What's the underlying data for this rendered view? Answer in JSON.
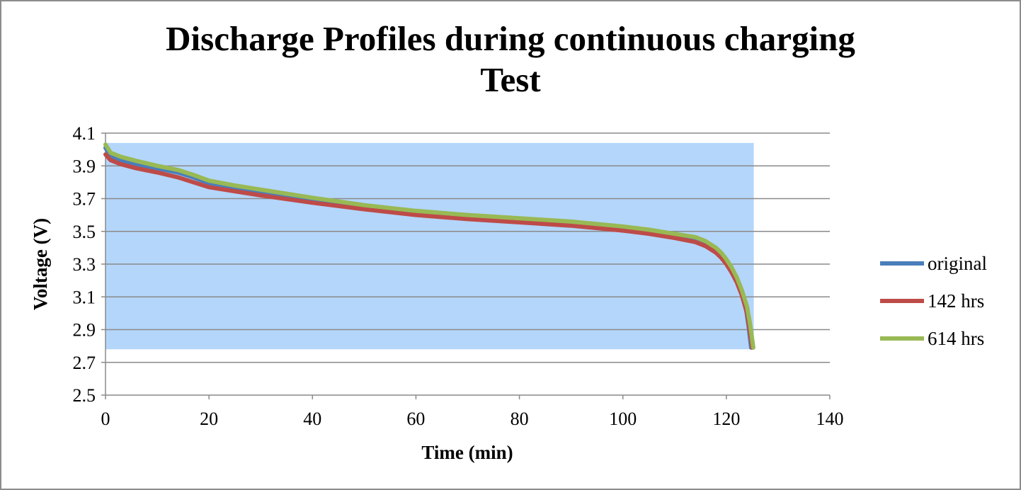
{
  "chart_data": {
    "type": "line",
    "title": "Discharge Profiles during continuous charging Test",
    "title_lines": [
      "Discharge Profiles during continuous charging",
      "Test"
    ],
    "xlabel": "Time (min)",
    "ylabel": "Voltage (V)",
    "xlim": [
      0,
      140
    ],
    "ylim": [
      2.5,
      4.1
    ],
    "x_ticks": [
      0,
      20,
      40,
      60,
      80,
      100,
      120,
      140
    ],
    "x_tick_labels": [
      "0",
      "20",
      "40",
      "60",
      "80",
      "100",
      "120",
      "140"
    ],
    "y_ticks": [
      2.5,
      2.7,
      2.9,
      3.1,
      3.3,
      3.5,
      3.7,
      3.9,
      4.1
    ],
    "y_tick_labels": [
      "2.5",
      "2.7",
      "2.9",
      "3.1",
      "3.3",
      "3.5",
      "3.7",
      "3.9",
      "4.1"
    ],
    "grid": "horizontal",
    "legend_position": "right",
    "highlight_region": {
      "x": [
        0,
        125.3
      ],
      "y": [
        2.78,
        4.04
      ],
      "color": "#b4d6fa"
    },
    "series": [
      {
        "name": "original",
        "color": "#4a7ebb",
        "x": [
          0,
          1,
          3,
          6,
          10,
          14,
          17,
          20,
          25,
          30,
          40,
          50,
          60,
          70,
          80,
          90,
          100,
          105,
          110,
          114,
          116,
          118,
          119,
          120,
          121,
          122,
          123,
          123.8,
          124.3,
          124.8
        ],
        "y": [
          4.01,
          3.96,
          3.935,
          3.91,
          3.885,
          3.86,
          3.83,
          3.795,
          3.765,
          3.74,
          3.69,
          3.645,
          3.61,
          3.585,
          3.565,
          3.545,
          3.515,
          3.495,
          3.47,
          3.445,
          3.42,
          3.38,
          3.35,
          3.31,
          3.26,
          3.2,
          3.12,
          3.03,
          2.92,
          2.79
        ]
      },
      {
        "name": "142 hrs",
        "color": "#be4b48",
        "x": [
          0,
          1,
          3,
          6,
          10,
          14,
          17,
          20,
          25,
          30,
          40,
          50,
          60,
          70,
          80,
          90,
          100,
          105,
          110,
          114,
          116,
          118,
          119,
          120,
          121,
          122,
          123,
          124,
          124.5,
          125
        ],
        "y": [
          3.97,
          3.935,
          3.91,
          3.885,
          3.86,
          3.83,
          3.8,
          3.77,
          3.745,
          3.72,
          3.675,
          3.635,
          3.6,
          3.575,
          3.555,
          3.535,
          3.505,
          3.485,
          3.46,
          3.435,
          3.41,
          3.37,
          3.34,
          3.3,
          3.25,
          3.19,
          3.11,
          3.0,
          2.9,
          2.79
        ]
      },
      {
        "name": "614 hrs",
        "color": "#98b954",
        "x": [
          0,
          1,
          3,
          6,
          10,
          14,
          17,
          20,
          25,
          30,
          40,
          50,
          60,
          70,
          80,
          90,
          100,
          105,
          110,
          114,
          116,
          118,
          119,
          120,
          121,
          122,
          123,
          124,
          124.6,
          125.2
        ],
        "y": [
          4.03,
          3.98,
          3.955,
          3.93,
          3.9,
          3.875,
          3.845,
          3.81,
          3.78,
          3.755,
          3.705,
          3.66,
          3.625,
          3.6,
          3.58,
          3.56,
          3.53,
          3.51,
          3.485,
          3.465,
          3.44,
          3.4,
          3.37,
          3.33,
          3.28,
          3.22,
          3.14,
          3.04,
          2.93,
          2.79
        ]
      }
    ]
  }
}
